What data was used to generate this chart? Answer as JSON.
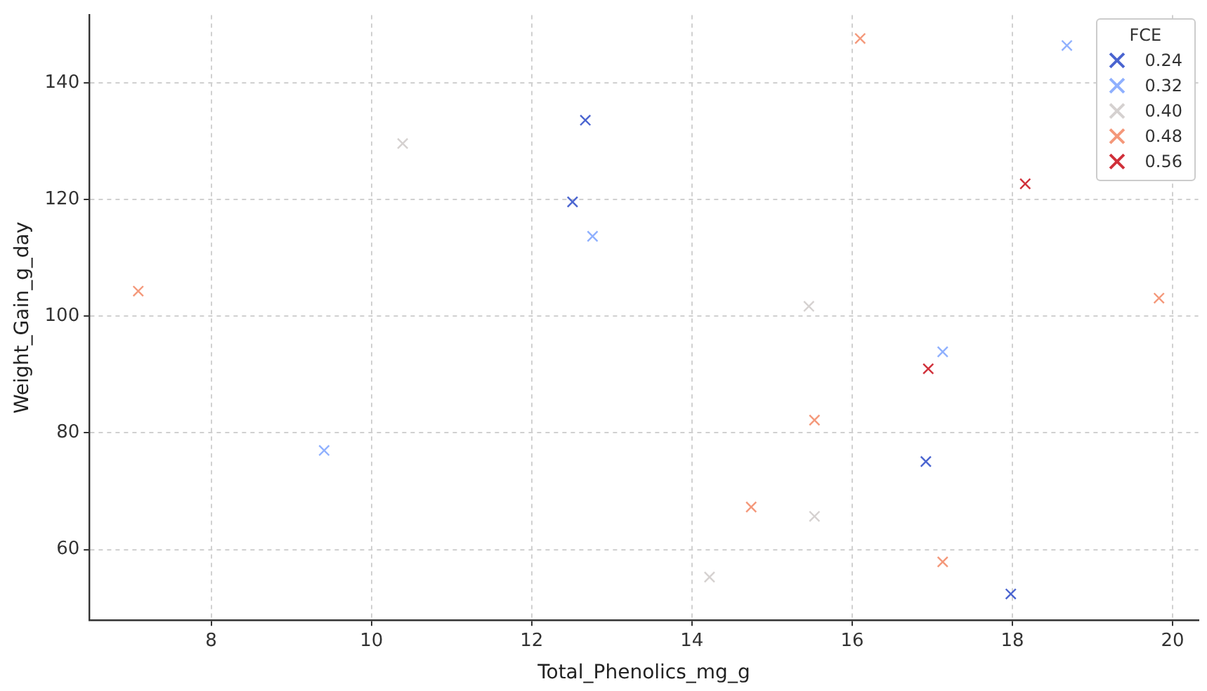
{
  "chart_data": {
    "type": "scatter",
    "xlabel": "Total_Phenolics_mg_g",
    "ylabel": "Weight_Gain_g_day",
    "legend_title": "FCE",
    "legend": "top right",
    "marker": "cross",
    "grid": true,
    "xlim": [
      6.48,
      20.32
    ],
    "ylim": [
      47.9,
      151.6
    ],
    "xticks": [
      8,
      10,
      12,
      14,
      16,
      18,
      20
    ],
    "yticks": [
      60,
      80,
      100,
      120,
      140
    ],
    "series": [
      {
        "name": "0.24",
        "color": "#4a64d0",
        "x": [
          12.51,
          12.67,
          16.92,
          17.98
        ],
        "values": [
          119.6,
          133.6,
          75.1,
          52.4
        ]
      },
      {
        "name": "0.32",
        "color": "#8fb0fe",
        "x": [
          9.41,
          12.76,
          17.13,
          18.68
        ],
        "values": [
          77.0,
          113.7,
          93.9,
          146.4
        ]
      },
      {
        "name": "0.40",
        "color": "#d5d1d0",
        "x": [
          10.39,
          14.22,
          15.46,
          15.53
        ],
        "values": [
          129.6,
          55.3,
          101.7,
          65.7
        ]
      },
      {
        "name": "0.48",
        "color": "#f4987a",
        "x": [
          7.09,
          14.74,
          15.53,
          16.1,
          17.13,
          19.83
        ],
        "values": [
          104.3,
          67.3,
          82.2,
          147.6,
          57.9,
          103.1
        ]
      },
      {
        "name": "0.56",
        "color": "#d0303a",
        "x": [
          16.95,
          18.16
        ],
        "values": [
          91.0,
          122.7
        ]
      }
    ]
  }
}
